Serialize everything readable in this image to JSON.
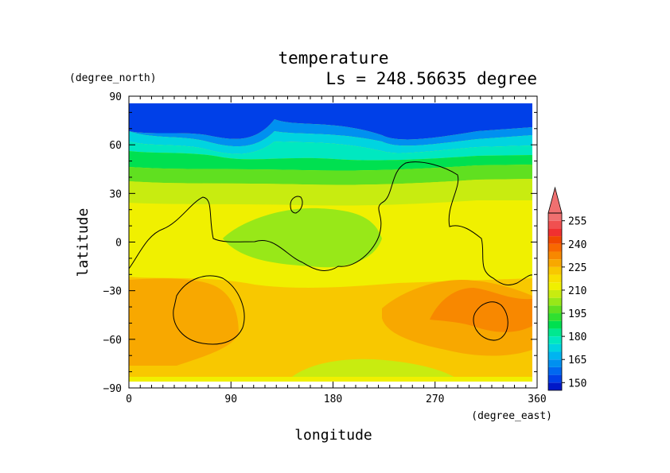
{
  "chart_data": {
    "type": "heatmap",
    "title": "temperature",
    "subtitle": "Ls = 248.56635 degree",
    "xlabel": "longitude",
    "ylabel": "latitude",
    "x_units": "(degree_east)",
    "y_units": "(degree_north)",
    "xlim": [
      0,
      360
    ],
    "ylim": [
      -90,
      90
    ],
    "x_ticks": [
      0,
      90,
      180,
      270,
      360
    ],
    "y_ticks": [
      90,
      60,
      30,
      0,
      -30,
      -60,
      -90
    ],
    "x_tick_labels": [
      "0",
      "90",
      "180",
      "270",
      "360"
    ],
    "y_tick_labels": [
      "90",
      "60",
      "30",
      "0",
      "−30",
      "−60",
      "−90"
    ],
    "colorbar": {
      "levels": [
        145,
        150,
        155,
        160,
        165,
        170,
        175,
        180,
        185,
        190,
        195,
        200,
        205,
        210,
        215,
        220,
        225,
        230,
        235,
        240,
        245,
        250,
        255,
        260
      ],
      "colors": [
        "#0018c8",
        "#0040e8",
        "#0068f0",
        "#0090f0",
        "#00b4f0",
        "#00d4e0",
        "#00e8c0",
        "#00e890",
        "#00e050",
        "#30e030",
        "#60e020",
        "#98e818",
        "#c8ec10",
        "#f0f000",
        "#f8e000",
        "#f8c800",
        "#f8a800",
        "#f88800",
        "#f86800",
        "#f04800",
        "#f03030",
        "#f05050",
        "#f07070"
      ],
      "tick_labels": [
        "150",
        "165",
        "180",
        "195",
        "210",
        "225",
        "240",
        "255"
      ],
      "extend_top_color": "#f07070"
    },
    "zonal_profile": [
      {
        "lat": 85,
        "value": 146
      },
      {
        "lat": 75,
        "value": 152
      },
      {
        "lat": 65,
        "value": 170
      },
      {
        "lat": 55,
        "value": 190
      },
      {
        "lat": 45,
        "value": 203
      },
      {
        "lat": 35,
        "value": 210
      },
      {
        "lat": 20,
        "value": 214
      },
      {
        "lat": 5,
        "value": 213
      },
      {
        "lat": -10,
        "value": 216
      },
      {
        "lat": -25,
        "value": 222
      },
      {
        "lat": -40,
        "value": 226
      },
      {
        "lat": -55,
        "value": 224
      },
      {
        "lat": -70,
        "value": 220
      },
      {
        "lat": -85,
        "value": 218
      }
    ]
  }
}
